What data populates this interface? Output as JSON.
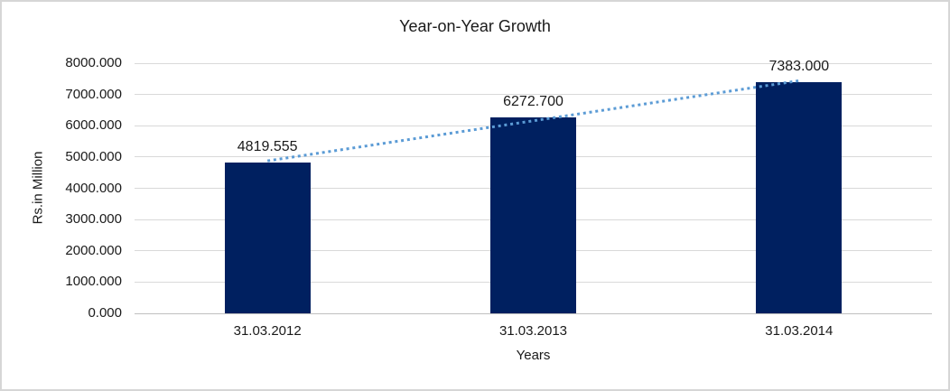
{
  "chart_data": {
    "type": "bar",
    "title": "Year-on-Year Growth",
    "xlabel": "Years",
    "ylabel": "Rs.in Million",
    "categories": [
      "31.03.2012",
      "31.03.2013",
      "31.03.2014"
    ],
    "values": [
      4819.555,
      6272.7,
      7383.0
    ],
    "data_labels": [
      "4819.555",
      "6272.700",
      "7383.000"
    ],
    "y_ticks": [
      "0.000",
      "1000.000",
      "2000.000",
      "3000.000",
      "4000.000",
      "5000.000",
      "6000.000",
      "7000.000",
      "8000.000"
    ],
    "ylim": [
      0,
      8000
    ],
    "grid": true,
    "legend": "none",
    "bar_color": "#002060",
    "trendline": {
      "type": "linear",
      "style": "dotted",
      "color": "#5B9BD5"
    },
    "colors": {
      "gridline": "#D9D9D9",
      "axis_line": "#BFBFBF",
      "text": "#1A1A1A",
      "background": "#FFFFFF",
      "frame_border": "#D6D6D6"
    }
  }
}
